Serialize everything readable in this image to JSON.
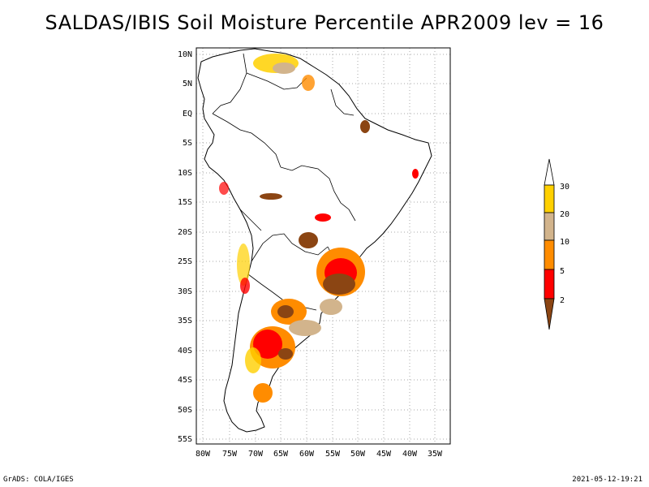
{
  "title": "SALDAS/IBIS Soil Moisture Percentile APR2009 lev = 16",
  "map": {
    "lat_ticks": [
      "10N",
      "5N",
      "EQ",
      "5S",
      "10S",
      "15S",
      "20S",
      "25S",
      "30S",
      "35S",
      "40S",
      "45S",
      "50S",
      "55S"
    ],
    "lon_ticks": [
      "80W",
      "75W",
      "70W",
      "65W",
      "60W",
      "55W",
      "50W",
      "45W",
      "40W",
      "35W"
    ],
    "lon_range": [
      -81,
      -33
    ],
    "lat_range": [
      -56,
      12
    ],
    "region": "South America"
  },
  "legend": {
    "labels": [
      "30",
      "20",
      "10",
      "5",
      "2"
    ],
    "colors": {
      "above30": "#ffffff",
      "20to30": "#ffd000",
      "10to20": "#d2b48c",
      "5to10": "#ff8c00",
      "2to5": "#ff0000",
      "below2": "#8b4513"
    }
  },
  "footer": {
    "left": "GrADS: COLA/IGES",
    "right": "2021-05-12-19:21"
  }
}
